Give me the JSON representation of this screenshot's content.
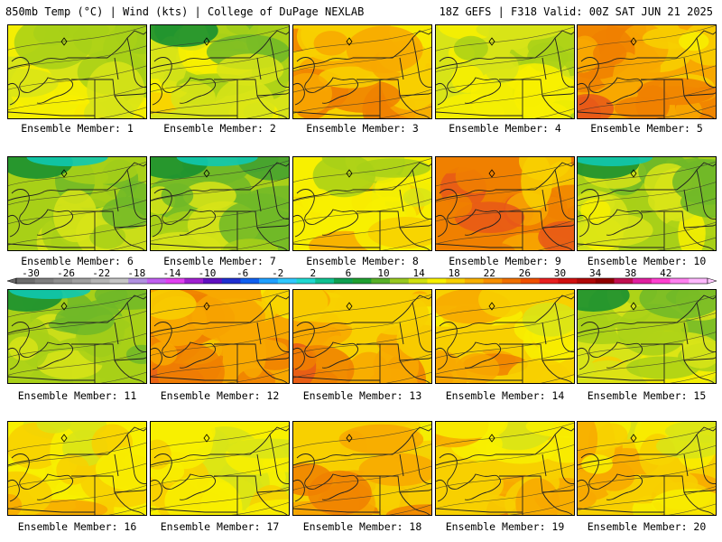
{
  "header": {
    "left": "850mb Temp (°C) | Wind (kts) | College of DuPage NEXLAB",
    "right": "18Z GEFS | F318 Valid: 00Z SAT JUN 21 2025"
  },
  "colorbar": {
    "labels": [
      "-30",
      "-26",
      "-22",
      "-18",
      "-14",
      "-10",
      "-6",
      "-2",
      "2",
      "6",
      "10",
      "14",
      "18",
      "22",
      "26",
      "30",
      "34",
      "38",
      "42"
    ],
    "colors": [
      "#6d6d6d",
      "#7f7f7f",
      "#8f8f8f",
      "#a0a0a0",
      "#b4b4b4",
      "#c6c6c6",
      "#b090e0",
      "#c060f0",
      "#e040f0",
      "#a020d0",
      "#6010c0",
      "#2030d0",
      "#1060f0",
      "#20a0ff",
      "#30c8ff",
      "#20d8d0",
      "#10c090",
      "#10a050",
      "#20a030",
      "#58b028",
      "#98c820",
      "#d0e010",
      "#f8f000",
      "#f8d000",
      "#f8b000",
      "#f89000",
      "#f07000",
      "#f05000",
      "#e82020",
      "#d01010",
      "#b00808",
      "#900000",
      "#c01050",
      "#e020a0",
      "#ff40d0",
      "#ff80f0",
      "#ffb8ff"
    ]
  },
  "map": {
    "fill_scale": [
      "#189030",
      "#40a030",
      "#70b828",
      "#a8d018",
      "#d8e418",
      "#f8f000",
      "#f8d000",
      "#f8a800",
      "#f08000",
      "#e85818"
    ],
    "cold_ramp": [
      "#10c8b0",
      "#20a868",
      "#189030"
    ]
  },
  "panels": [
    {
      "caption": "Ensemble Member: 1",
      "level": 0.45
    },
    {
      "caption": "Ensemble Member: 2",
      "level": 0.4
    },
    {
      "caption": "Ensemble Member: 3",
      "level": 0.72
    },
    {
      "caption": "Ensemble Member: 4",
      "level": 0.45
    },
    {
      "caption": "Ensemble Member: 5",
      "level": 0.78
    },
    {
      "caption": "Ensemble Member: 6",
      "level": 0.32
    },
    {
      "caption": "Ensemble Member: 7",
      "level": 0.28
    },
    {
      "caption": "Ensemble Member: 8",
      "level": 0.5
    },
    {
      "caption": "Ensemble Member: 9",
      "level": 0.85
    },
    {
      "caption": "Ensemble Member: 10",
      "level": 0.38
    },
    {
      "caption": "Ensemble Member: 11",
      "level": 0.3
    },
    {
      "caption": "Ensemble Member: 12",
      "level": 0.75
    },
    {
      "caption": "Ensemble Member: 13",
      "level": 0.72
    },
    {
      "caption": "Ensemble Member: 14",
      "level": 0.65
    },
    {
      "caption": "Ensemble Member: 15",
      "level": 0.4
    },
    {
      "caption": "Ensemble Member: 16",
      "level": 0.6
    },
    {
      "caption": "Ensemble Member: 17",
      "level": 0.55
    },
    {
      "caption": "Ensemble Member: 18",
      "level": 0.7
    },
    {
      "caption": "Ensemble Member: 19",
      "level": 0.65
    },
    {
      "caption": "Ensemble Member: 20",
      "level": 0.62
    }
  ]
}
